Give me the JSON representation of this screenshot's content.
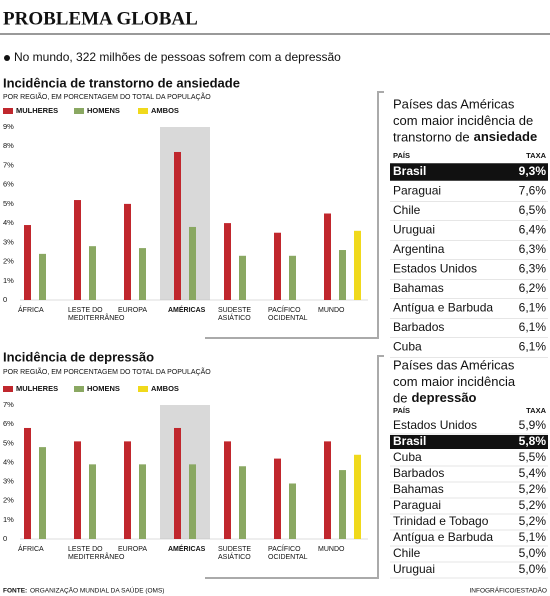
{
  "header": {
    "title": "PROBLEMA GLOBAL",
    "summary": "No mundo, 322 milhões de pessoas sofrem com a depressão"
  },
  "chart_data": [
    {
      "type": "bar",
      "title": "Incidência de transtorno de ansiedade",
      "subtitle": "POR REGIÃO, EM PORCENTAGEM DO TOTAL DA POPULAÇÃO",
      "categories": [
        "ÁFRICA",
        "LESTE DO\nMEDITERRÂNEO",
        "EUROPA",
        "AMÉRICAS",
        "SUDESTE\nASIÁTICO",
        "PACÍFICO\nOCIDENTAL",
        "MUNDO"
      ],
      "series": [
        {
          "name": "MULHERES",
          "color": "#c0272d",
          "values": [
            3.9,
            5.2,
            5.0,
            7.7,
            4.0,
            3.5,
            4.5
          ]
        },
        {
          "name": "HOMENS",
          "color": "#8aa862",
          "values": [
            2.4,
            2.8,
            2.7,
            3.8,
            2.3,
            2.3,
            2.6
          ]
        },
        {
          "name": "AMBOS",
          "color": "#f0d91c",
          "values": [
            null,
            null,
            null,
            null,
            null,
            null,
            3.6
          ]
        }
      ],
      "ylim": [
        0,
        9
      ],
      "yticks": [
        0,
        {
          "value": 1,
          "label": "1%"
        },
        {
          "value": 2,
          "label": "2%"
        },
        {
          "value": 3,
          "label": "3%"
        },
        {
          "value": 4,
          "label": "4%"
        },
        {
          "value": 5,
          "label": "5%"
        },
        {
          "value": 6,
          "label": "6%"
        },
        {
          "value": 7,
          "label": "7%"
        },
        {
          "value": 8,
          "label": "8%"
        },
        {
          "value": 9,
          "label": "9%"
        }
      ],
      "grid": false
    },
    {
      "type": "bar",
      "title": "Incidência de depressão",
      "subtitle": "POR REGIÃO, EM PORCENTAGEM DO TOTAL DA POPULAÇÃO",
      "categories": [
        "ÁFRICA",
        "LESTE DO\nMEDITERRÂNEO",
        "EUROPA",
        "AMÉRICAS",
        "SUDESTE\nASIÁTICO",
        "PACÍFICO\nOCIDENTAL",
        "MUNDO"
      ],
      "series": [
        {
          "name": "MULHERES",
          "color": "#c0272d",
          "values": [
            5.8,
            5.1,
            5.1,
            5.8,
            5.1,
            4.2,
            5.1
          ]
        },
        {
          "name": "HOMENS",
          "color": "#8aa862",
          "values": [
            4.8,
            3.9,
            3.9,
            3.9,
            3.8,
            2.9,
            3.6
          ]
        },
        {
          "name": "AMBOS",
          "color": "#f0d91c",
          "values": [
            null,
            null,
            null,
            null,
            null,
            null,
            4.4
          ]
        }
      ],
      "ylim": [
        0,
        7
      ],
      "yticks": [
        0,
        {
          "value": 1,
          "label": "1%"
        },
        {
          "value": 2,
          "label": "2%"
        },
        {
          "value": 3,
          "label": "3%"
        },
        {
          "value": 4,
          "label": "4%"
        },
        {
          "value": 5,
          "label": "5%"
        },
        {
          "value": 6,
          "label": "6%"
        },
        {
          "value": 7,
          "label": "7%"
        }
      ],
      "grid": false
    }
  ],
  "tables": [
    {
      "title_lines": [
        "Países das Américas",
        "com maior incidência de",
        "transtorno de"
      ],
      "title_emphasis": "ansiedade",
      "columns": [
        "PAÍS",
        "TAXA"
      ],
      "rows": [
        [
          "Brasil",
          "9,3%"
        ],
        [
          "Paraguai",
          "7,6%"
        ],
        [
          "Chile",
          "6,5%"
        ],
        [
          "Uruguai",
          "6,4%"
        ],
        [
          "Argentina",
          "6,3%"
        ],
        [
          "Estados Unidos",
          "6,3%"
        ],
        [
          "Bahamas",
          "6,2%"
        ],
        [
          "Antígua e Barbuda",
          "6,1%"
        ],
        [
          "Barbados",
          "6,1%"
        ],
        [
          "Cuba",
          "6,1%"
        ]
      ]
    },
    {
      "title_lines": [
        "Países das Américas",
        "com maior incidência",
        "de"
      ],
      "title_emphasis": "depressão",
      "columns": [
        "PAÍS",
        "TAXA"
      ],
      "rows": [
        [
          "Estados Unidos",
          "5,9%"
        ],
        [
          "Brasil",
          "5,8%"
        ],
        [
          "Cuba",
          "5,5%"
        ],
        [
          "Barbados",
          "5,4%"
        ],
        [
          "Bahamas",
          "5,2%"
        ],
        [
          "Paraguai",
          "5,2%"
        ],
        [
          "Trinidad e Tobago",
          "5,2%"
        ],
        [
          "Antígua e Barbuda",
          "5,1%"
        ],
        [
          "Chile",
          "5,0%"
        ],
        [
          "Uruguai",
          "5,0%"
        ]
      ]
    }
  ],
  "footer": {
    "source_label": "FONTE:",
    "source": "ORGANIZAÇÃO MUNDIAL DA SAÚDE (OMS)",
    "credit": "INFOGRÁFICO/ESTADÃO"
  }
}
